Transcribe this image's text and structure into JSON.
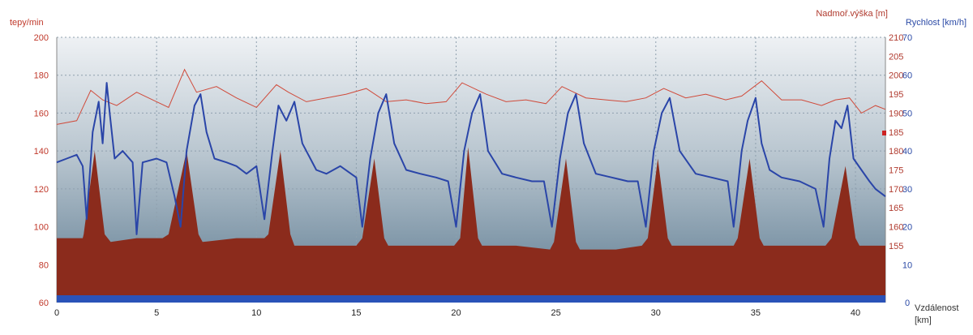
{
  "colors": {
    "heart_rate_axis": "#c0392b",
    "altitude_axis": "#b03a2e",
    "speed_axis": "#2b4aa6",
    "altitude_fill": "#8b2b1c",
    "heart_rate_line": "#d04a3a",
    "speed_line": "#2a45a8",
    "floor_band": "#2a52b8",
    "plot_top": "#eef1f4",
    "plot_bottom": "#5c7a90"
  },
  "axis_labels": {
    "left": "tepy/min",
    "right_outer": "Nadmoř.výška [m]",
    "right_inner": "Rychlost [km/h]",
    "x_line1": "Vzdálenost",
    "x_line2": "[km]"
  },
  "chart_data": {
    "type": "area",
    "x_axis": {
      "label": "Vzdálenost [km]",
      "range": [
        0,
        41.5
      ],
      "ticks": [
        0,
        5,
        10,
        15,
        20,
        25,
        30,
        35,
        40
      ]
    },
    "y_axes": {
      "heart_rate": {
        "label": "tepy/min",
        "range": [
          60,
          200
        ],
        "ticks": [
          60,
          80,
          100,
          120,
          140,
          160,
          180,
          200
        ],
        "position": "left"
      },
      "altitude": {
        "label": "Nadmoř.výška [m]",
        "range": [
          140,
          210
        ],
        "ticks": [
          155,
          160,
          165,
          170,
          175,
          180,
          185,
          190,
          195,
          200,
          205,
          210
        ],
        "position": "right"
      },
      "speed": {
        "label": "Rychlost [km/h]",
        "range": [
          0,
          70
        ],
        "ticks": [
          0,
          10,
          20,
          30,
          40,
          50,
          60,
          70
        ],
        "position": "right"
      }
    },
    "grid": true,
    "series": [
      {
        "type": "area",
        "axis": "altitude",
        "x": [
          0,
          1.3,
          1.35,
          1.9,
          2.4,
          2.7,
          4,
          5.3,
          5.6,
          6.5,
          7.1,
          7.3,
          9,
          10.4,
          10.6,
          11.2,
          11.7,
          11.9,
          13.4,
          15,
          15.3,
          15.9,
          16.4,
          16.6,
          18,
          19.9,
          20.2,
          20.6,
          21.1,
          21.3,
          23,
          24.7,
          24.9,
          25.5,
          26,
          26.2,
          28,
          29.3,
          29.6,
          30.1,
          30.6,
          30.8,
          32.5,
          33.9,
          34.1,
          34.7,
          35.2,
          35.4,
          37,
          38.5,
          38.8,
          39.5,
          40,
          40.2,
          41,
          41.5
        ],
        "values": [
          157,
          157,
          158,
          180,
          158,
          156,
          157,
          157,
          158,
          180,
          158,
          156,
          157,
          157,
          158,
          180,
          158,
          155,
          155,
          155,
          157,
          178,
          157,
          155,
          155,
          155,
          157,
          181,
          157,
          155,
          155,
          154,
          156,
          178,
          156,
          154,
          154,
          155,
          157,
          178,
          157,
          155,
          155,
          155,
          157,
          178,
          157,
          155,
          155,
          155,
          157,
          176,
          157,
          155,
          155,
          155
        ]
      },
      {
        "type": "line",
        "name": "tepy/min",
        "axis": "heart_rate",
        "x": [
          0,
          1,
          1.7,
          2.3,
          3,
          4,
          5,
          5.6,
          6.4,
          7,
          8,
          9,
          10,
          11,
          11.6,
          12.5,
          13.5,
          14.5,
          15.5,
          16.5,
          17.5,
          18.5,
          19.5,
          20.3,
          21.5,
          22.5,
          23.5,
          24.5,
          25.3,
          26.5,
          27.5,
          28.5,
          29.5,
          30.4,
          31.5,
          32.5,
          33.5,
          34.3,
          35.3,
          36.3,
          37.3,
          38.3,
          39,
          39.7,
          40.3,
          41,
          41.5
        ],
        "values": [
          154,
          156,
          172,
          167,
          164,
          171,
          166,
          163,
          183,
          171,
          174,
          168,
          163,
          175,
          171,
          166,
          168,
          170,
          173,
          166,
          167,
          165,
          166,
          176,
          170,
          166,
          167,
          165,
          174,
          168,
          167,
          166,
          168,
          173,
          168,
          170,
          167,
          169,
          177,
          167,
          167,
          164,
          167,
          168,
          160,
          164,
          162
        ]
      },
      {
        "type": "line",
        "name": "Rychlost",
        "axis": "speed",
        "x": [
          0,
          0.5,
          1,
          1.3,
          1.5,
          1.8,
          2.1,
          2.3,
          2.5,
          2.65,
          2.9,
          3.3,
          3.8,
          4,
          4.3,
          5,
          5.5,
          5.9,
          6.2,
          6.5,
          6.9,
          7.2,
          7.5,
          7.9,
          8.5,
          9,
          9.5,
          10,
          10.4,
          10.8,
          11.1,
          11.5,
          11.9,
          12.3,
          13,
          13.5,
          14.2,
          15,
          15.3,
          15.7,
          16.1,
          16.5,
          16.9,
          17.5,
          18.2,
          19,
          19.6,
          20,
          20.4,
          20.8,
          21.2,
          21.6,
          22.3,
          23,
          23.8,
          24.4,
          24.8,
          25.2,
          25.6,
          26,
          26.4,
          27,
          27.8,
          28.6,
          29.1,
          29.5,
          29.9,
          30.3,
          30.7,
          31.2,
          32,
          32.8,
          33.6,
          33.9,
          34.3,
          34.6,
          35,
          35.3,
          35.7,
          36.3,
          37.2,
          38,
          38.4,
          38.7,
          39,
          39.3,
          39.6,
          39.9,
          40.3,
          40.7,
          41,
          41.5
        ],
        "values": [
          37,
          38,
          39,
          36,
          22,
          45,
          53,
          42,
          58,
          50,
          38,
          40,
          37,
          18,
          37,
          38,
          37,
          28,
          20,
          40,
          52,
          55,
          45,
          38,
          37,
          36,
          34,
          36,
          22,
          40,
          52,
          48,
          53,
          42,
          35,
          34,
          36,
          33,
          20,
          38,
          50,
          55,
          42,
          35,
          34,
          33,
          32,
          20,
          40,
          50,
          55,
          40,
          34,
          33,
          32,
          32,
          20,
          38,
          50,
          55,
          42,
          34,
          33,
          32,
          32,
          20,
          40,
          50,
          54,
          40,
          34,
          33,
          32,
          20,
          40,
          48,
          54,
          42,
          35,
          33,
          32,
          30,
          20,
          38,
          48,
          46,
          52,
          38,
          35,
          32,
          30,
          28
        ]
      }
    ]
  }
}
